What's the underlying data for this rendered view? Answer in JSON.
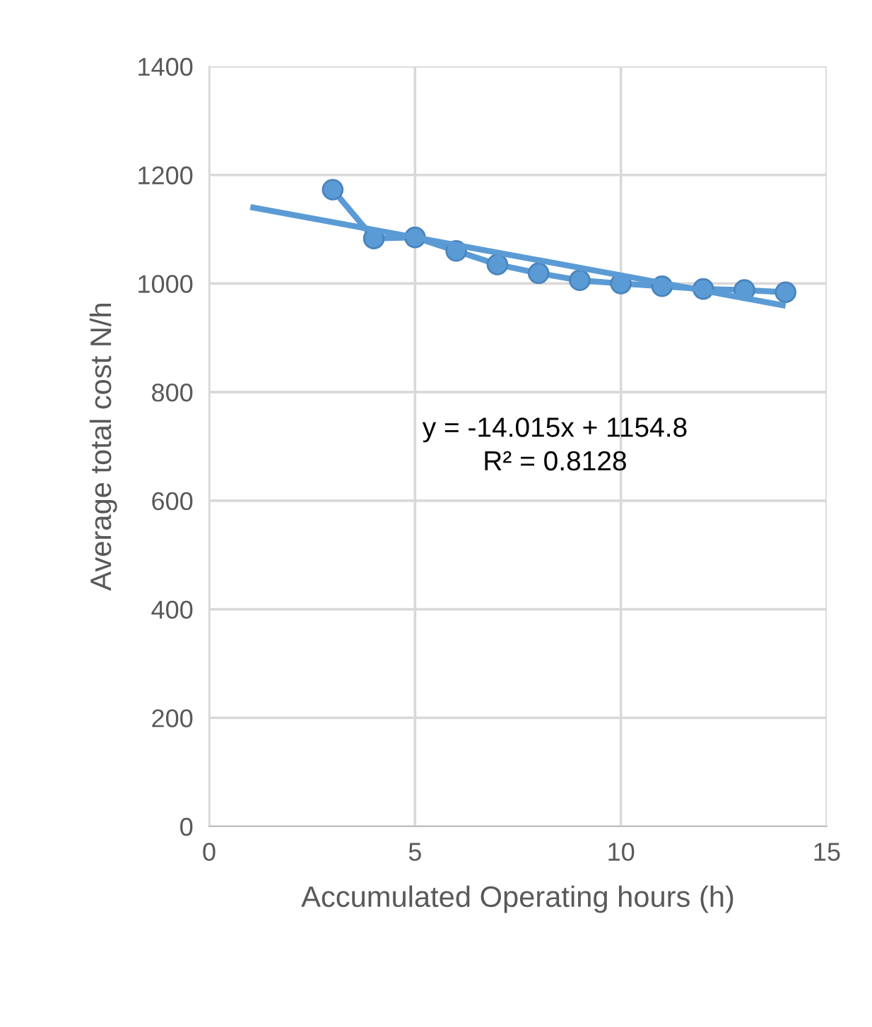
{
  "chart_data": {
    "type": "line",
    "xlabel": "Accumulated Operating hours (h)",
    "ylabel": "Average total cost N/h",
    "series": [
      {
        "color": "#5b9bd5",
        "marker": "circle",
        "x": [
          3,
          4,
          5,
          6,
          7,
          8,
          9,
          10,
          11,
          12,
          13,
          14
        ],
        "values": [
          1173,
          1083,
          1085,
          1060,
          1035,
          1019,
          1006,
          1000,
          995,
          990,
          988,
          984
        ]
      },
      {
        "color": "#5b9bd5",
        "marker": "none",
        "x": [
          1,
          14
        ],
        "values": [
          1141,
          959
        ]
      }
    ],
    "annotations": [
      "y = -14.015x + 1154.8\nR² = 0.8128"
    ],
    "xlim": [
      0,
      15
    ],
    "xticks": [
      0,
      5,
      10,
      15
    ],
    "ylim": [
      0,
      1400
    ],
    "yticks": [
      0,
      200,
      400,
      600,
      800,
      1000,
      1200,
      1400
    ],
    "grid": true,
    "legend": false
  }
}
